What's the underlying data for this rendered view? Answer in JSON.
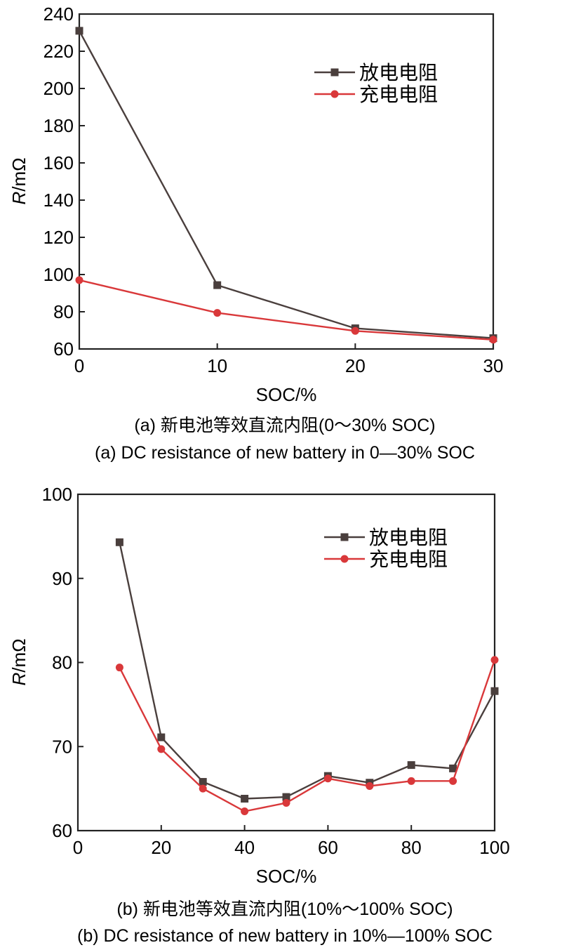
{
  "chart_data": [
    {
      "id": "a",
      "type": "line",
      "xlabel": "SOC/%",
      "ylabel_italic": "R",
      "ylabel_unit": "/mΩ",
      "xlim": [
        0,
        30
      ],
      "ylim": [
        60,
        240
      ],
      "xticks": [
        "0",
        "10",
        "20",
        "30"
      ],
      "yticks": [
        "60",
        "80",
        "100",
        "120",
        "140",
        "160",
        "180",
        "200",
        "220",
        "240"
      ],
      "legend_position": "top-right",
      "series": [
        {
          "name": "放电电阻",
          "color": "#4a3f3d",
          "marker": "square",
          "x": [
            0,
            10,
            20,
            30
          ],
          "values": [
            231,
            94.3,
            71.1,
            65.8
          ]
        },
        {
          "name": "充电电阻",
          "color": "#d9383a",
          "marker": "circle",
          "x": [
            0,
            10,
            20,
            30
          ],
          "values": [
            97,
            79.4,
            69.7,
            65
          ]
        }
      ],
      "caption_cn": "(a) 新电池等效直流内阻(0～30% SOC)",
      "caption_en": "(a) DC resistance of new battery in 0—30% SOC"
    },
    {
      "id": "b",
      "type": "line",
      "xlabel": "SOC/%",
      "ylabel_italic": "R",
      "ylabel_unit": "/mΩ",
      "xlim": [
        0,
        100
      ],
      "ylim": [
        60,
        100
      ],
      "xticks": [
        "0",
        "20",
        "40",
        "60",
        "80",
        "100"
      ],
      "yticks": [
        "60",
        "70",
        "80",
        "90",
        "100"
      ],
      "legend_position": "top-right",
      "series": [
        {
          "name": "放电电阻",
          "color": "#4a3f3d",
          "marker": "square",
          "x": [
            10,
            20,
            30,
            40,
            50,
            60,
            70,
            80,
            90,
            100
          ],
          "values": [
            94.3,
            71.1,
            65.8,
            63.8,
            64.0,
            66.5,
            65.7,
            67.8,
            67.4,
            76.6
          ]
        },
        {
          "name": "充电电阻",
          "color": "#d9383a",
          "marker": "circle",
          "x": [
            10,
            20,
            30,
            40,
            50,
            60,
            70,
            80,
            90,
            100
          ],
          "values": [
            79.4,
            69.7,
            65.0,
            62.3,
            63.3,
            66.2,
            65.3,
            65.9,
            65.9,
            80.3
          ]
        }
      ],
      "caption_cn": "(b) 新电池等效直流内阻(10%～100% SOC)",
      "caption_en": "(b) DC resistance of new battery in 10%—100% SOC"
    }
  ]
}
